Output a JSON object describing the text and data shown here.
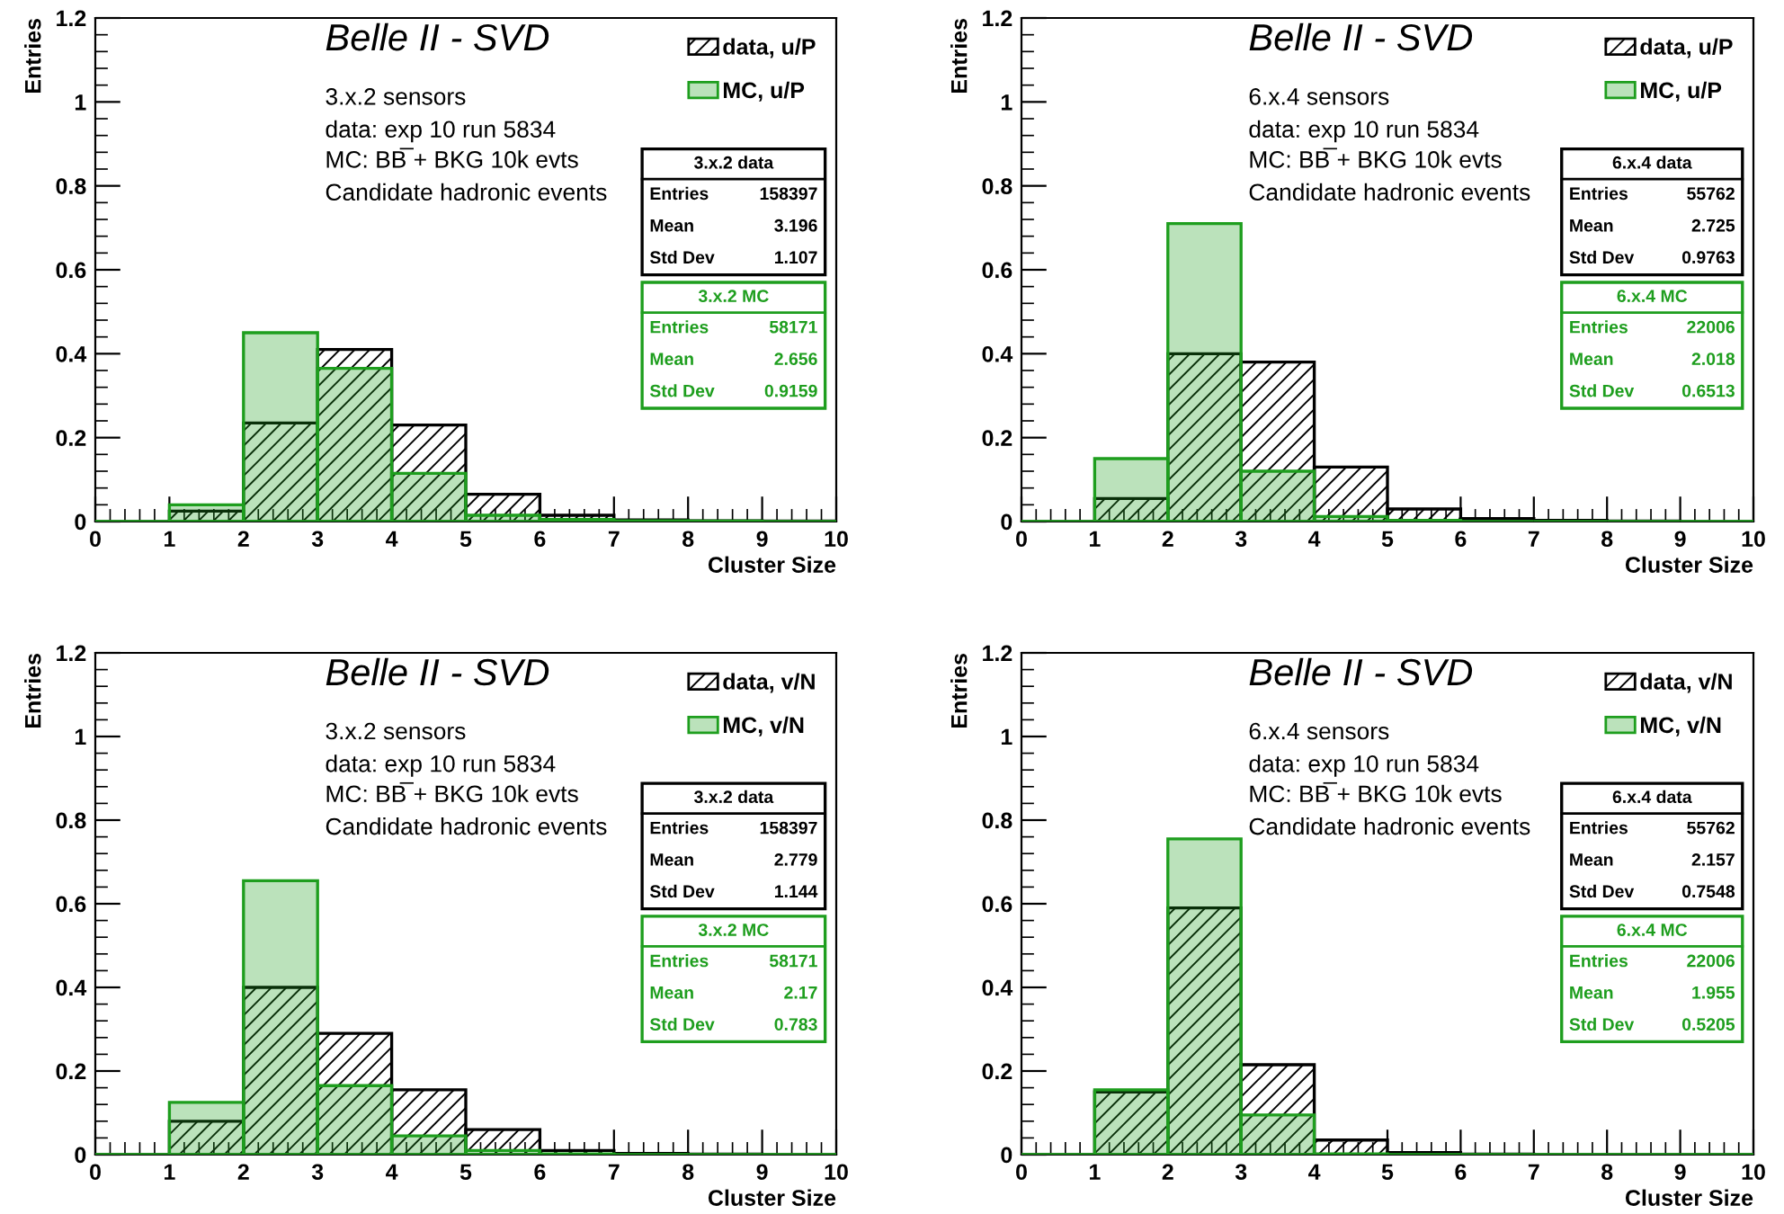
{
  "chart_data": [
    {
      "type": "histogram",
      "title": "Belle II - SVD",
      "xlabel": "Cluster Size",
      "ylabel": "Entries",
      "bins": [
        0,
        1,
        2,
        3,
        4,
        5,
        6,
        7,
        8,
        9,
        10
      ],
      "series": [
        {
          "name": "data, u/P",
          "color": "#000000",
          "values": [
            0,
            0.025,
            0.235,
            0.41,
            0.23,
            0.065,
            0.015,
            0.004,
            0.002,
            0.001
          ]
        },
        {
          "name": "MC, u/P",
          "color": "#1e9e1e",
          "values": [
            0,
            0.04,
            0.45,
            0.365,
            0.115,
            0.015,
            0.005,
            0.002,
            0.001,
            0
          ]
        }
      ],
      "xlim": [
        0,
        10
      ],
      "xticks": [
        0,
        1,
        2,
        3,
        4,
        5,
        6,
        7,
        8,
        9,
        10
      ],
      "ylim": [
        0,
        1.2
      ],
      "yticks": [
        0,
        0.2,
        0.4,
        0.6,
        0.8,
        1,
        1.2
      ],
      "legend": "top right",
      "annotations": [
        "3.x.2 sensors",
        "data: exp 10 run 5834",
        "MC: BB̅ + BKG 10k evts",
        "Candidate hadronic events",
        "3.x.2 data",
        "Entries",
        "158397",
        "Mean",
        "3.196",
        "Std Dev",
        "1.107",
        "3.x.2 MC",
        "Entries",
        "58171",
        "Mean",
        "2.656",
        "Std Dev",
        "0.9159"
      ]
    },
    {
      "type": "histogram",
      "title": "Belle II - SVD",
      "xlabel": "Cluster Size",
      "ylabel": "Entries",
      "bins": [
        0,
        1,
        2,
        3,
        4,
        5,
        6,
        7,
        8,
        9,
        10
      ],
      "series": [
        {
          "name": "data, u/P",
          "color": "#000000",
          "values": [
            0,
            0.055,
            0.4,
            0.38,
            0.13,
            0.03,
            0.007,
            0.003,
            0.001,
            0
          ]
        },
        {
          "name": "MC, u/P",
          "color": "#1e9e1e",
          "values": [
            0,
            0.15,
            0.71,
            0.12,
            0.012,
            0.003,
            0,
            0,
            0,
            0
          ]
        }
      ],
      "xlim": [
        0,
        10
      ],
      "xticks": [
        0,
        1,
        2,
        3,
        4,
        5,
        6,
        7,
        8,
        9,
        10
      ],
      "ylim": [
        0,
        1.2
      ],
      "yticks": [
        0,
        0.2,
        0.4,
        0.6,
        0.8,
        1,
        1.2
      ],
      "legend": "top right",
      "annotations": [
        "6.x.4 sensors",
        "data: exp 10 run 5834",
        "MC: BB̅ + BKG 10k evts",
        "Candidate hadronic events",
        "6.x.4 data",
        "Entries",
        "55762",
        "Mean",
        "2.725",
        "Std Dev",
        "0.9763",
        "6.x.4 MC",
        "Entries",
        "22006",
        "Mean",
        "2.018",
        "Std Dev",
        "0.6513"
      ]
    },
    {
      "type": "histogram",
      "title": "Belle II - SVD",
      "xlabel": "Cluster Size",
      "ylabel": "Entries",
      "bins": [
        0,
        1,
        2,
        3,
        4,
        5,
        6,
        7,
        8,
        9,
        10
      ],
      "series": [
        {
          "name": "data, v/N",
          "color": "#000000",
          "values": [
            0,
            0.08,
            0.4,
            0.29,
            0.155,
            0.06,
            0.01,
            0.003,
            0.001,
            0
          ]
        },
        {
          "name": "MC, v/N",
          "color": "#1e9e1e",
          "values": [
            0,
            0.125,
            0.655,
            0.165,
            0.045,
            0.01,
            0.002,
            0,
            0,
            0
          ]
        }
      ],
      "xlim": [
        0,
        10
      ],
      "xticks": [
        0,
        1,
        2,
        3,
        4,
        5,
        6,
        7,
        8,
        9,
        10
      ],
      "ylim": [
        0,
        1.2
      ],
      "yticks": [
        0,
        0.2,
        0.4,
        0.6,
        0.8,
        1,
        1.2
      ],
      "legend": "top right",
      "annotations": [
        "3.x.2 sensors",
        "data: exp 10 run 5834",
        "MC: BB̅ + BKG 10k evts",
        "Candidate hadronic events",
        "3.x.2 data",
        "Entries",
        "158397",
        "Mean",
        "2.779",
        "Std Dev",
        "1.144",
        "3.x.2 MC",
        "Entries",
        "58171",
        "Mean",
        "2.17",
        "Std Dev",
        "0.783"
      ]
    },
    {
      "type": "histogram",
      "title": "Belle II - SVD",
      "xlabel": "Cluster Size",
      "ylabel": "Entries",
      "bins": [
        0,
        1,
        2,
        3,
        4,
        5,
        6,
        7,
        8,
        9,
        10
      ],
      "series": [
        {
          "name": "data, v/N",
          "color": "#000000",
          "values": [
            0,
            0.15,
            0.59,
            0.215,
            0.035,
            0.005,
            0.001,
            0,
            0,
            0
          ]
        },
        {
          "name": "MC, v/N",
          "color": "#1e9e1e",
          "values": [
            0,
            0.155,
            0.755,
            0.095,
            0.002,
            0,
            0,
            0,
            0,
            0
          ]
        }
      ],
      "xlim": [
        0,
        10
      ],
      "xticks": [
        0,
        1,
        2,
        3,
        4,
        5,
        6,
        7,
        8,
        9,
        10
      ],
      "ylim": [
        0,
        1.2
      ],
      "yticks": [
        0,
        0.2,
        0.4,
        0.6,
        0.8,
        1,
        1.2
      ],
      "legend": "top right",
      "annotations": [
        "6.x.4 sensors",
        "data: exp 10 run 5834",
        "MC: BB̅ + BKG 10k evts",
        "Candidate hadronic events",
        "6.x.4 data",
        "Entries",
        "55762",
        "Mean",
        "2.157",
        "Std Dev",
        "0.7548",
        "6.x.4 MC",
        "Entries",
        "22006",
        "Mean",
        "1.955",
        "Std Dev",
        "0.5205"
      ]
    }
  ]
}
